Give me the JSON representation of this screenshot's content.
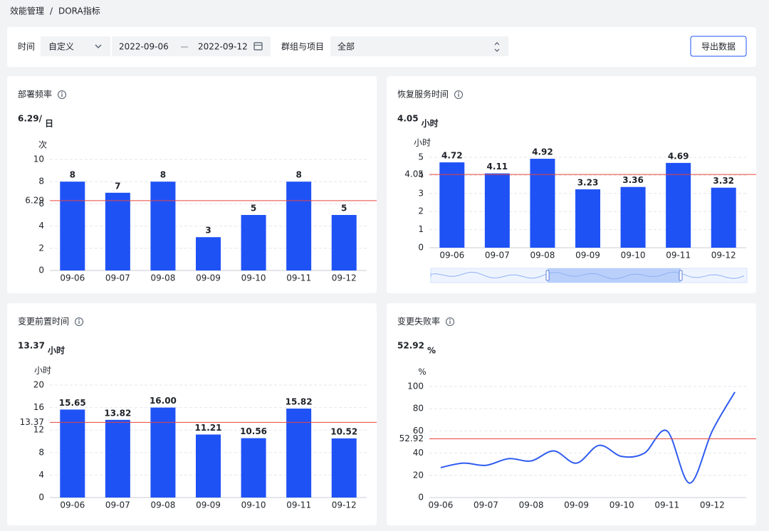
{
  "breadcrumb": {
    "parent": "效能管理",
    "separator": "/",
    "current": "DORA指标"
  },
  "filters": {
    "time_label": "时间",
    "time_mode": "自定义",
    "start_date": "2022-09-06",
    "end_date": "2022-09-12",
    "group_label": "群组与项目",
    "group_placeholder": "全部",
    "export_button": "导出数据"
  },
  "chart_data": [
    {
      "type": "bar",
      "title": "部署频率",
      "headline": "6.29/",
      "headline_unit": "日",
      "y_unit": "次",
      "categories": [
        "09-06",
        "09-07",
        "09-08",
        "09-09",
        "09-10",
        "09-11",
        "09-12"
      ],
      "values": [
        8,
        7,
        8,
        3,
        5,
        8,
        5
      ],
      "ylim": [
        0,
        10
      ],
      "yticks": [
        0,
        2,
        4,
        6,
        8,
        10
      ],
      "reference": 6.29,
      "color": "#1f52f5",
      "reference_color": "#e8453c",
      "grid": true
    },
    {
      "type": "bar",
      "title": "恢复服务时间",
      "headline": "4.05",
      "headline_unit": "小时",
      "y_unit": "小时",
      "categories": [
        "09-06",
        "09-07",
        "09-08",
        "09-09",
        "09-10",
        "09-11",
        "09-12"
      ],
      "values": [
        4.72,
        4.11,
        4.92,
        3.23,
        3.36,
        4.69,
        3.32
      ],
      "ylim": [
        0,
        5
      ],
      "yticks": [
        0,
        1,
        2,
        3,
        4,
        5
      ],
      "reference": 4.05,
      "color": "#1f52f5",
      "reference_color": "#e8453c",
      "grid": true,
      "zoom_slider": true
    },
    {
      "type": "bar",
      "title": "变更前置时间",
      "headline": "13.37",
      "headline_unit": "小时",
      "y_unit": "小时",
      "categories": [
        "09-06",
        "09-07",
        "09-08",
        "09-09",
        "09-10",
        "09-11",
        "09-12"
      ],
      "values": [
        15.65,
        13.82,
        16,
        11.21,
        10.56,
        15.82,
        10.52
      ],
      "value_labels": [
        "15.65",
        "13.82",
        "16.00",
        "11.21",
        "10.56",
        "15.82",
        "10.52"
      ],
      "ylim": [
        0,
        20
      ],
      "yticks": [
        0,
        4,
        8,
        12,
        16,
        20
      ],
      "reference": 13.37,
      "color": "#1f52f5",
      "reference_color": "#e8453c",
      "grid": true
    },
    {
      "type": "line",
      "title": "变更失败率",
      "headline": "52.92",
      "headline_unit": "%",
      "y_unit": "%",
      "categories": [
        "09-06",
        null,
        "09-07",
        null,
        "09-08",
        null,
        "09-09",
        null,
        "09-10",
        null,
        "09-11",
        null,
        "09-12",
        null
      ],
      "values": [
        27,
        31,
        29,
        35,
        33,
        42,
        31,
        47,
        37,
        40,
        60,
        13,
        60,
        95
      ],
      "ylim": [
        0,
        100
      ],
      "yticks": [
        0,
        20,
        40,
        60,
        80,
        100
      ],
      "reference": 52.92,
      "color": "#2f5cf0",
      "reference_color": "#e8453c",
      "grid": true
    }
  ]
}
